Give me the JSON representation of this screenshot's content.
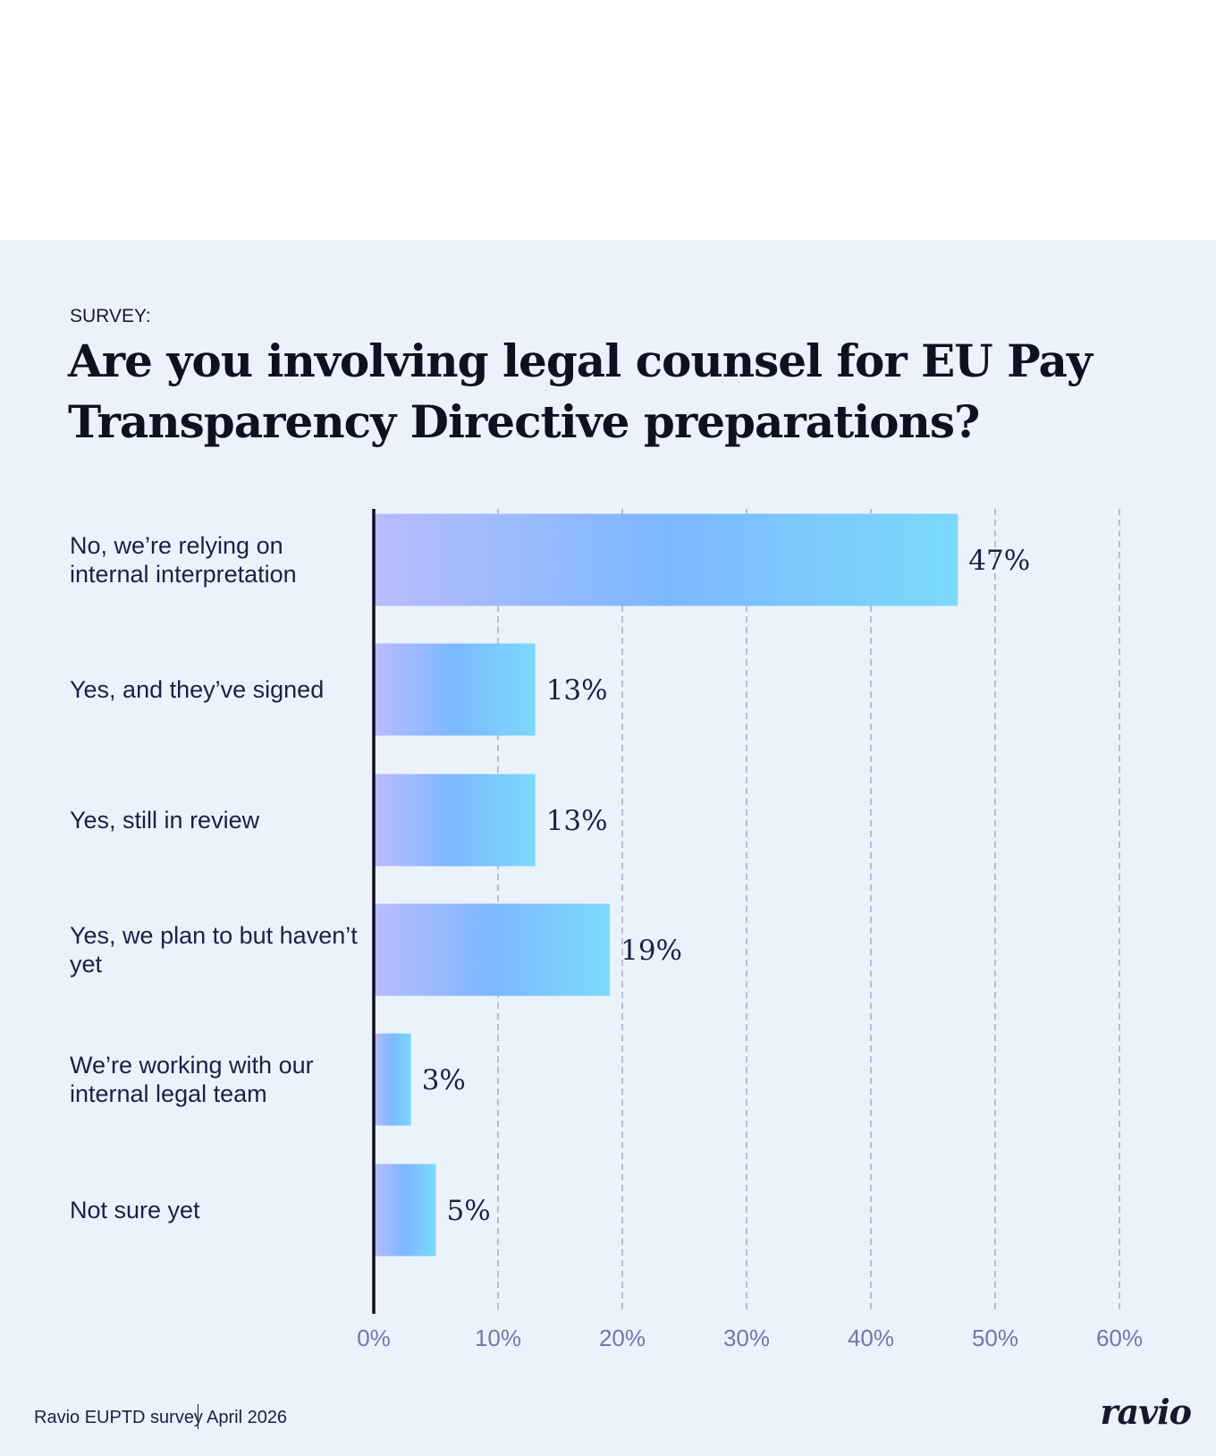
{
  "kicker": "SURVEY:",
  "chart_data": {
    "type": "bar",
    "orientation": "horizontal",
    "title": "Are you involving legal counsel for EU Pay Transparency Directive preparations?",
    "categories": [
      "No, we’re relying on internal interpretation",
      "Yes, and they’ve signed",
      "Yes, still in review",
      "Yes, we plan to but haven’t yet",
      "We’re working with our internal legal team",
      "Not sure yet"
    ],
    "values": [
      47,
      13,
      13,
      19,
      3,
      5
    ],
    "value_labels": [
      "47%",
      "13%",
      "13%",
      "19%",
      "3%",
      "5%"
    ],
    "gradient": [
      "#b9bbfe",
      "#7cb8ff",
      "#7bd9fc"
    ],
    "xlim": [
      0,
      60
    ],
    "xticks": [
      {
        "value": 0,
        "label": "0%"
      },
      {
        "value": 10,
        "label": "10%"
      },
      {
        "value": 20,
        "label": "20%"
      },
      {
        "value": 30,
        "label": "30%"
      },
      {
        "value": 40,
        "label": "40%"
      },
      {
        "value": 50,
        "label": "50%"
      },
      {
        "value": 60,
        "label": "60%"
      }
    ],
    "grid": true
  },
  "footer": {
    "source": "Ravio EUPTD survey",
    "date": "April 2026",
    "logo": "ravio"
  }
}
